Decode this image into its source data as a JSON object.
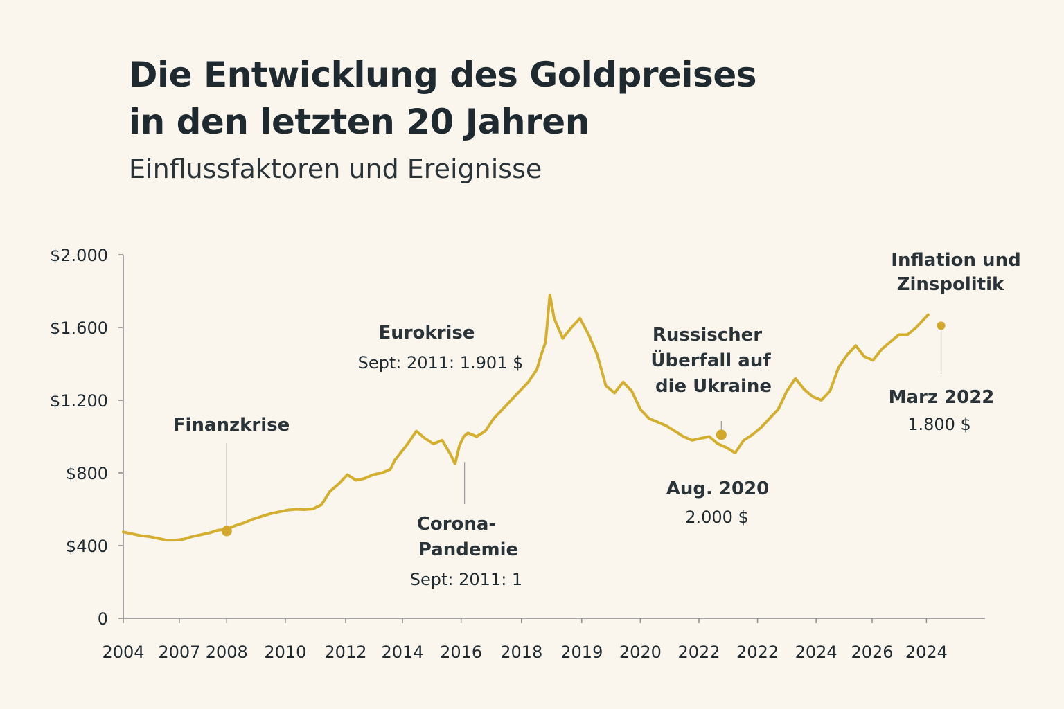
{
  "header": {
    "title_line1": "Die Entwicklung des Goldpreises",
    "title_line2": "in den letzten 20 Jahren",
    "subtitle": "Einflussfaktoren und Ereignisse"
  },
  "colors": {
    "background": "#faf6ee",
    "line": "#d4ae2e",
    "marker": "#d1a82b",
    "text": "#1f2a30",
    "axis": "#8a8a8a"
  },
  "chart_data": {
    "type": "line",
    "title": "Die Entwicklung des Goldpreises in den letzten 20 Jahren",
    "subtitle": "Einflussfaktoren und Ereignisse",
    "xlabel": "",
    "ylabel": "",
    "ylim": [
      0,
      2000
    ],
    "xlim": [
      0,
      100
    ],
    "y_ticks": [
      0,
      400,
      800,
      1200,
      1600,
      2000
    ],
    "y_tick_labels": [
      "0",
      "$400",
      "$800",
      "$1.200",
      "$1.600",
      "$2.000"
    ],
    "x_tick_labels": [
      "2004",
      "2007",
      "2008",
      "2010",
      "2012",
      "2014",
      "2016",
      "2018",
      "2019",
      "2020",
      "2022",
      "2022",
      "2024",
      "2026",
      "2024"
    ],
    "x_tick_positions": [
      0,
      6.5,
      12,
      18.8,
      25.8,
      32.4,
      39.2,
      46.2,
      53.2,
      60.0,
      66.8,
      73.6,
      80.4,
      86.9,
      93.2
    ],
    "grid": false,
    "legend": "none",
    "series": [
      {
        "name": "Goldpreis",
        "x": [
          0,
          1,
          2,
          3,
          4,
          5,
          6,
          7,
          8,
          9,
          10,
          11,
          12,
          13,
          14,
          15,
          16,
          17,
          18,
          19,
          20,
          21,
          22,
          23,
          24,
          25,
          26,
          27,
          28,
          29,
          30,
          31,
          31.5,
          32,
          33,
          34,
          35,
          36,
          37,
          38,
          38.5,
          39,
          39.5,
          40,
          41,
          42,
          43,
          44,
          45,
          46,
          47,
          48,
          48.5,
          49,
          49.5,
          50,
          51,
          52,
          53,
          54,
          55,
          56,
          57,
          58,
          59,
          60,
          61,
          62,
          63,
          64,
          65,
          66,
          67,
          68,
          69,
          70,
          71,
          72,
          73,
          74,
          75,
          76,
          77,
          78,
          79,
          80,
          81,
          82,
          83,
          84,
          85,
          86,
          87,
          88,
          89,
          90,
          91,
          92,
          93,
          93.4
        ],
        "y": [
          475,
          465,
          455,
          450,
          440,
          430,
          430,
          435,
          450,
          460,
          470,
          485,
          490,
          510,
          525,
          545,
          560,
          575,
          585,
          595,
          600,
          598,
          602,
          625,
          700,
          740,
          790,
          760,
          770,
          790,
          800,
          820,
          870,
          900,
          960,
          1030,
          990,
          960,
          980,
          900,
          850,
          950,
          1000,
          1020,
          1000,
          1030,
          1100,
          1150,
          1200,
          1250,
          1300,
          1370,
          1450,
          1520,
          1780,
          1650,
          1540,
          1600,
          1650,
          1560,
          1450,
          1280,
          1240,
          1300,
          1250,
          1150,
          1100,
          1080,
          1060,
          1030,
          1000,
          980,
          990,
          1000,
          960,
          940,
          910,
          980,
          1010,
          1050,
          1100,
          1150,
          1250,
          1320,
          1260,
          1220,
          1200,
          1250,
          1380,
          1450,
          1500,
          1440,
          1420,
          1480,
          1520,
          1560,
          1560,
          1600,
          1650,
          1670
        ]
      }
    ],
    "annotations": [
      {
        "label": "Finanzkrise",
        "detail": [],
        "x": 12,
        "y": 480,
        "marker": true
      },
      {
        "label": "Eurokrise",
        "detail": [
          "Sept: 2011: 1.901 $"
        ],
        "x": null,
        "y": null,
        "marker": false
      },
      {
        "label": "Corona-Pandemie",
        "label_lines": [
          "Corona-",
          "Pandemie"
        ],
        "detail": [
          "Sept: 2011: 1"
        ],
        "x": 39.6,
        "y": 860,
        "marker": false
      },
      {
        "label": "Russischer Überfall auf die Ukraine",
        "label_lines": [
          "Russischer",
          "Überfall auf",
          "die Ukraine"
        ],
        "detail": [
          "Aug. 2020",
          "2.000 $"
        ],
        "x": 69.4,
        "y": 1010,
        "marker": true
      },
      {
        "label": "Inflation und Zinspolitik",
        "label_lines": [
          "Inflation und",
          "Zinspolitik"
        ],
        "detail": [
          "Marz 2022",
          "1.800 $"
        ],
        "x": 94.9,
        "y": 1610,
        "marker": true
      }
    ]
  }
}
